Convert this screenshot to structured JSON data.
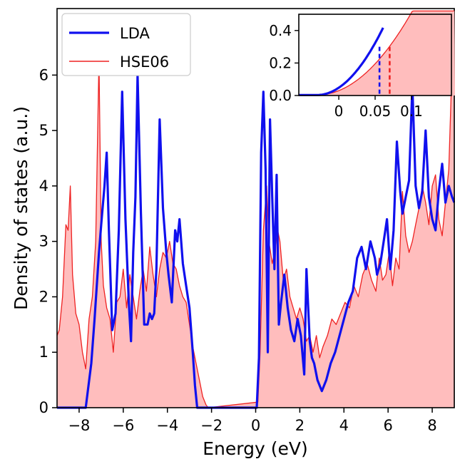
{
  "chart_data": [
    {
      "type": "area",
      "role": "main",
      "xlabel": "Energy (eV)",
      "ylabel": "Density of states (a.u.)",
      "xlim": [
        -9,
        9
      ],
      "ylim": [
        0,
        7.2
      ],
      "xticks": [
        -8,
        -6,
        -4,
        -2,
        0,
        2,
        4,
        6,
        8
      ],
      "xtick_labels": [
        "−8",
        "−6",
        "−4",
        "−2",
        "0",
        "2",
        "4",
        "6",
        "8"
      ],
      "yticks": [
        0,
        1,
        2,
        3,
        4,
        5,
        6
      ],
      "ytick_labels": [
        "0",
        "1",
        "2",
        "3",
        "4",
        "5",
        "6"
      ],
      "grid": false,
      "legend_position": "top-left",
      "series": [
        {
          "name": "LDA",
          "color": "#1010ee",
          "style": "line",
          "x": [
            -9,
            -7.9,
            -7.7,
            -7.45,
            -7.3,
            -7.1,
            -7.0,
            -6.85,
            -6.75,
            -6.65,
            -6.5,
            -6.35,
            -6.2,
            -6.05,
            -5.9,
            -5.75,
            -5.65,
            -5.55,
            -5.45,
            -5.35,
            -5.2,
            -5.05,
            -4.9,
            -4.8,
            -4.7,
            -4.6,
            -4.5,
            -4.35,
            -4.2,
            -4.05,
            -3.95,
            -3.8,
            -3.65,
            -3.55,
            -3.45,
            -3.3,
            -3.15,
            -3.0,
            -2.85,
            -2.75,
            -2.65,
            -2.5,
            -2.35,
            -2.2,
            -2.05,
            -1.95,
            -1.85,
            -1.75,
            0.05,
            0.15,
            0.25,
            0.35,
            0.45,
            0.55,
            0.65,
            0.75,
            0.85,
            0.95,
            1.05,
            1.15,
            1.3,
            1.45,
            1.6,
            1.75,
            1.9,
            2.05,
            2.2,
            2.3,
            2.45,
            2.55,
            2.65,
            2.8,
            3.0,
            3.2,
            3.4,
            3.6,
            3.8,
            4.0,
            4.2,
            4.4,
            4.6,
            4.8,
            5.0,
            5.2,
            5.4,
            5.5,
            5.65,
            5.8,
            5.95,
            6.1,
            6.25,
            6.4,
            6.55,
            6.65,
            6.8,
            6.95,
            7.1,
            7.25,
            7.4,
            7.55,
            7.7,
            7.85,
            8.0,
            8.15,
            8.3,
            8.45,
            8.6,
            8.75,
            8.9,
            9.0
          ],
          "y": [
            0,
            0,
            0,
            0.8,
            1.6,
            2.8,
            3.3,
            4.0,
            4.6,
            3.2,
            1.4,
            1.7,
            3.2,
            5.7,
            3.4,
            1.9,
            1.2,
            2.8,
            3.8,
            6.0,
            3.5,
            1.5,
            1.5,
            1.7,
            1.6,
            1.7,
            2.5,
            5.2,
            3.6,
            2.8,
            2.4,
            1.9,
            3.2,
            3.0,
            3.4,
            2.6,
            2.2,
            1.8,
            1.0,
            0.4,
            0,
            0,
            0,
            0,
            0,
            0,
            0,
            0,
            0,
            0.9,
            4.6,
            5.7,
            4.3,
            1.0,
            5.2,
            3.8,
            2.5,
            4.2,
            1.5,
            1.9,
            2.4,
            1.8,
            1.4,
            1.2,
            1.6,
            1.3,
            0.6,
            2.5,
            1.2,
            0.9,
            0.8,
            0.5,
            0.3,
            0.5,
            0.8,
            1.0,
            1.3,
            1.6,
            1.9,
            2.1,
            2.7,
            2.9,
            2.5,
            3.0,
            2.7,
            2.4,
            2.6,
            3.0,
            3.4,
            2.5,
            3.2,
            4.8,
            3.9,
            3.5,
            3.8,
            4.1,
            5.8,
            4.0,
            3.6,
            3.9,
            5.0,
            3.8,
            3.4,
            3.2,
            3.9,
            4.4,
            3.7,
            4.0,
            3.8,
            3.7
          ]
        },
        {
          "name": "HSE06",
          "color": "#ee2222",
          "fill": "#ffbdbd",
          "style": "line+fill",
          "x": [
            -9,
            -8.9,
            -8.75,
            -8.6,
            -8.5,
            -8.4,
            -8.3,
            -8.15,
            -8.0,
            -7.85,
            -7.7,
            -7.55,
            -7.4,
            -7.25,
            -7.1,
            -7.0,
            -6.9,
            -6.75,
            -6.6,
            -6.45,
            -6.3,
            -6.15,
            -6.0,
            -5.85,
            -5.7,
            -5.55,
            -5.4,
            -5.25,
            -5.1,
            -4.95,
            -4.8,
            -4.65,
            -4.5,
            -4.35,
            -4.2,
            -4.05,
            -3.9,
            -3.75,
            -3.6,
            -3.45,
            -3.3,
            -3.15,
            -3.0,
            -2.85,
            -2.7,
            -2.55,
            -2.4,
            -2.25,
            -2.15,
            0.1,
            0.2,
            0.35,
            0.5,
            0.6,
            0.75,
            0.85,
            1.0,
            1.1,
            1.25,
            1.4,
            1.55,
            1.7,
            1.85,
            2.0,
            2.15,
            2.3,
            2.45,
            2.6,
            2.75,
            2.9,
            3.05,
            3.25,
            3.45,
            3.65,
            3.85,
            4.05,
            4.25,
            4.45,
            4.65,
            4.85,
            5.05,
            5.25,
            5.45,
            5.6,
            5.75,
            5.9,
            6.05,
            6.2,
            6.35,
            6.5,
            6.65,
            6.8,
            6.95,
            7.1,
            7.25,
            7.4,
            7.55,
            7.7,
            7.85,
            8.0,
            8.15,
            8.3,
            8.45,
            8.6,
            8.75,
            8.9,
            9.0
          ],
          "y": [
            1.3,
            1.4,
            2.0,
            3.3,
            3.2,
            4.0,
            2.4,
            1.7,
            1.5,
            1.0,
            0.7,
            1.6,
            2.0,
            3.0,
            6.3,
            3.0,
            2.2,
            1.8,
            1.6,
            1.0,
            1.9,
            2.0,
            2.5,
            1.8,
            2.4,
            2.0,
            1.6,
            2.1,
            2.5,
            2.1,
            2.9,
            2.4,
            2.0,
            2.5,
            2.8,
            2.7,
            3.0,
            2.6,
            2.5,
            2.2,
            2.0,
            1.9,
            1.5,
            1.1,
            0.8,
            0.5,
            0.2,
            0.05,
            0,
            0.1,
            1.0,
            3.2,
            4.0,
            3.0,
            2.6,
            2.8,
            3.2,
            3.0,
            2.3,
            2.5,
            2.0,
            1.8,
            1.6,
            1.8,
            1.6,
            1.2,
            1.3,
            1.0,
            1.3,
            0.9,
            1.1,
            1.3,
            1.6,
            1.5,
            1.7,
            1.9,
            1.8,
            2.2,
            2.0,
            2.4,
            2.6,
            2.3,
            2.1,
            2.7,
            2.3,
            2.4,
            2.8,
            2.2,
            2.7,
            2.5,
            3.9,
            3.1,
            2.8,
            3.0,
            3.3,
            3.6,
            4.0,
            3.7,
            3.3,
            4.0,
            4.2,
            3.4,
            3.1,
            3.7,
            4.3,
            6.2,
            6.4
          ]
        }
      ]
    },
    {
      "type": "area",
      "role": "inset",
      "xlim": [
        -0.055,
        0.155
      ],
      "ylim": [
        0,
        0.5
      ],
      "xticks": [
        0,
        0.05,
        0.1
      ],
      "xtick_labels": [
        "0",
        "0.05",
        "0.1"
      ],
      "yticks": [
        0.0,
        0.2,
        0.4
      ],
      "ytick_labels": [
        "0.0",
        "0.2",
        "0.4"
      ],
      "markers": [
        {
          "series": "LDA",
          "x": 0.056,
          "y": 0.3,
          "style": "dashed",
          "color": "#1010ee"
        },
        {
          "series": "HSE06",
          "x": 0.07,
          "y": 0.3,
          "style": "dashed",
          "color": "#ee2222"
        }
      ],
      "series": [
        {
          "name": "LDA",
          "color": "#1010ee",
          "style": "line",
          "onset": -0.03,
          "end": 0.061,
          "scale": 0.5
        },
        {
          "name": "HSE06",
          "color": "#ee2222",
          "fill": "#ffbdbd",
          "style": "line+fill",
          "onset": -0.03,
          "end": 0.16,
          "scale": 0.3
        }
      ]
    }
  ]
}
